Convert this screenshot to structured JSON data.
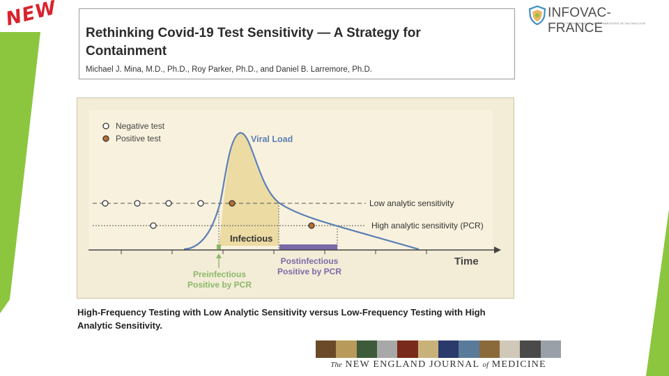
{
  "badge": {
    "text": "NEW"
  },
  "article": {
    "title": "Rethinking Covid-19 Test Sensitivity — A Strategy for Containment",
    "authors": "Michael J. Mina, M.D., Ph.D., Roy Parker, Ph.D., and Daniel B. Larremore, Ph.D."
  },
  "logo": {
    "name": "INFOVAC-FRANCE",
    "tagline": "LIGNE DIRECTE D'INFORMATION DES COMMISSIONS DE VACCINOLOGIE"
  },
  "diagram": {
    "legend": {
      "negative": "Negative test",
      "positive": "Positive test"
    },
    "curve_label": "Viral Load",
    "low_line_label": "Low analytic sensitivity",
    "high_line_label": "High analytic sensitivity (PCR)",
    "infectious_label": "Infectious",
    "axis_label": "Time",
    "pre_label_1": "Preinfectious",
    "pre_label_2": "Positive by PCR",
    "post_label_1": "Postinfectious",
    "post_label_2": "Positive by PCR",
    "colors": {
      "background": "#f3ecd7",
      "plot_area": "#f8f1dd",
      "infectious_fill": "#ecdba3",
      "curve": "#5b7fb5",
      "positive_dot": "#b5702f",
      "pre_band": "#8cb86a",
      "post_band": "#7a6aa8"
    }
  },
  "caption": "High-Frequency Testing with Low Analytic Sensitivity versus Low-Frequency Testing with High Analytic Sensitivity.",
  "journal": {
    "the": "The",
    "main": "NEW ENGLAND JOURNAL",
    "of": "of",
    "medicine": "MEDICINE"
  },
  "theme": {
    "accent_green": "#8cc63f"
  }
}
